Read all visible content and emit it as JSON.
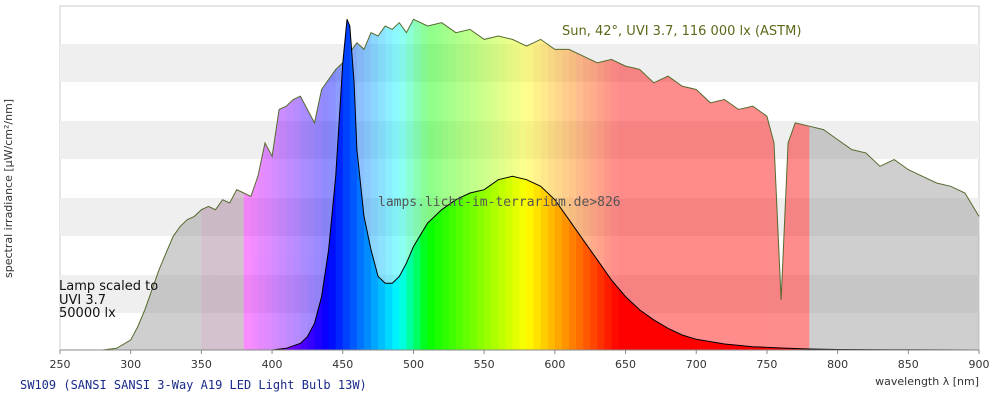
{
  "chart_data": {
    "type": "area",
    "xlabel": "wavelength λ [nm]",
    "ylabel": "spectral irradiance [µW/cm²/nm]",
    "xlim": [
      250,
      900
    ],
    "x_ticks": [
      250,
      300,
      350,
      400,
      450,
      500,
      550,
      600,
      650,
      700,
      750,
      800,
      850,
      900
    ],
    "grid": "horizontal bands",
    "sun_label": "Sun, 42°, UVI 3.7, 116 000 lx (ASTM)",
    "lamp_note": [
      "Lamp scaled to",
      "UVI 3.7",
      "50000 lx"
    ],
    "watermark": "lamps.licht-im-terrarium.de>826",
    "caption": "SW109 (SANSI SANSI 3-Way A19 LED Light Bulb 13W)",
    "series": [
      {
        "name": "Sun, 42°, UVI 3.7, 116 000 lx (ASTM)",
        "color": "#556b2f",
        "x": [
          280,
          290,
          300,
          305,
          310,
          315,
          320,
          325,
          330,
          335,
          340,
          345,
          350,
          355,
          360,
          365,
          370,
          375,
          380,
          385,
          390,
          395,
          400,
          405,
          410,
          415,
          420,
          425,
          430,
          435,
          440,
          445,
          450,
          455,
          460,
          465,
          470,
          475,
          480,
          485,
          490,
          495,
          500,
          510,
          520,
          530,
          540,
          550,
          560,
          570,
          580,
          590,
          600,
          610,
          620,
          630,
          640,
          650,
          660,
          670,
          680,
          690,
          700,
          710,
          720,
          730,
          740,
          750,
          755,
          760,
          765,
          770,
          780,
          790,
          800,
          810,
          820,
          830,
          840,
          850,
          860,
          870,
          880,
          890,
          900
        ],
        "y": [
          0,
          0.005,
          0.03,
          0.07,
          0.12,
          0.18,
          0.24,
          0.29,
          0.34,
          0.37,
          0.39,
          0.4,
          0.42,
          0.43,
          0.42,
          0.45,
          0.44,
          0.48,
          0.47,
          0.46,
          0.52,
          0.62,
          0.58,
          0.72,
          0.73,
          0.75,
          0.76,
          0.72,
          0.68,
          0.78,
          0.81,
          0.84,
          0.86,
          0.89,
          0.92,
          0.9,
          0.95,
          0.94,
          0.97,
          0.96,
          0.98,
          0.95,
          0.99,
          0.97,
          0.98,
          0.95,
          0.96,
          0.93,
          0.94,
          0.93,
          0.91,
          0.93,
          0.9,
          0.9,
          0.88,
          0.86,
          0.87,
          0.85,
          0.84,
          0.8,
          0.82,
          0.79,
          0.78,
          0.74,
          0.75,
          0.72,
          0.73,
          0.7,
          0.62,
          0.15,
          0.62,
          0.68,
          0.67,
          0.66,
          0.63,
          0.6,
          0.59,
          0.55,
          0.57,
          0.54,
          0.52,
          0.5,
          0.49,
          0.47,
          0.4
        ]
      },
      {
        "name": "SW109 (SANSI SANSI 3-Way A19 LED Light Bulb 13W)",
        "color": "#000000",
        "x": [
          400,
          410,
          420,
          425,
          430,
          435,
          440,
          445,
          450,
          453,
          455,
          458,
          460,
          465,
          470,
          475,
          480,
          485,
          490,
          495,
          500,
          510,
          520,
          530,
          540,
          550,
          560,
          570,
          580,
          590,
          600,
          610,
          620,
          630,
          640,
          650,
          660,
          670,
          680,
          690,
          700,
          720,
          740,
          760,
          780,
          800,
          850,
          900
        ],
        "y": [
          0,
          0.005,
          0.02,
          0.04,
          0.08,
          0.16,
          0.3,
          0.52,
          0.86,
          0.99,
          0.97,
          0.8,
          0.6,
          0.4,
          0.3,
          0.22,
          0.2,
          0.2,
          0.22,
          0.26,
          0.31,
          0.38,
          0.42,
          0.45,
          0.47,
          0.48,
          0.51,
          0.52,
          0.51,
          0.49,
          0.45,
          0.39,
          0.33,
          0.27,
          0.21,
          0.16,
          0.12,
          0.09,
          0.065,
          0.045,
          0.032,
          0.018,
          0.01,
          0.006,
          0.003,
          0.0015,
          0.0005,
          0
        ]
      }
    ]
  }
}
